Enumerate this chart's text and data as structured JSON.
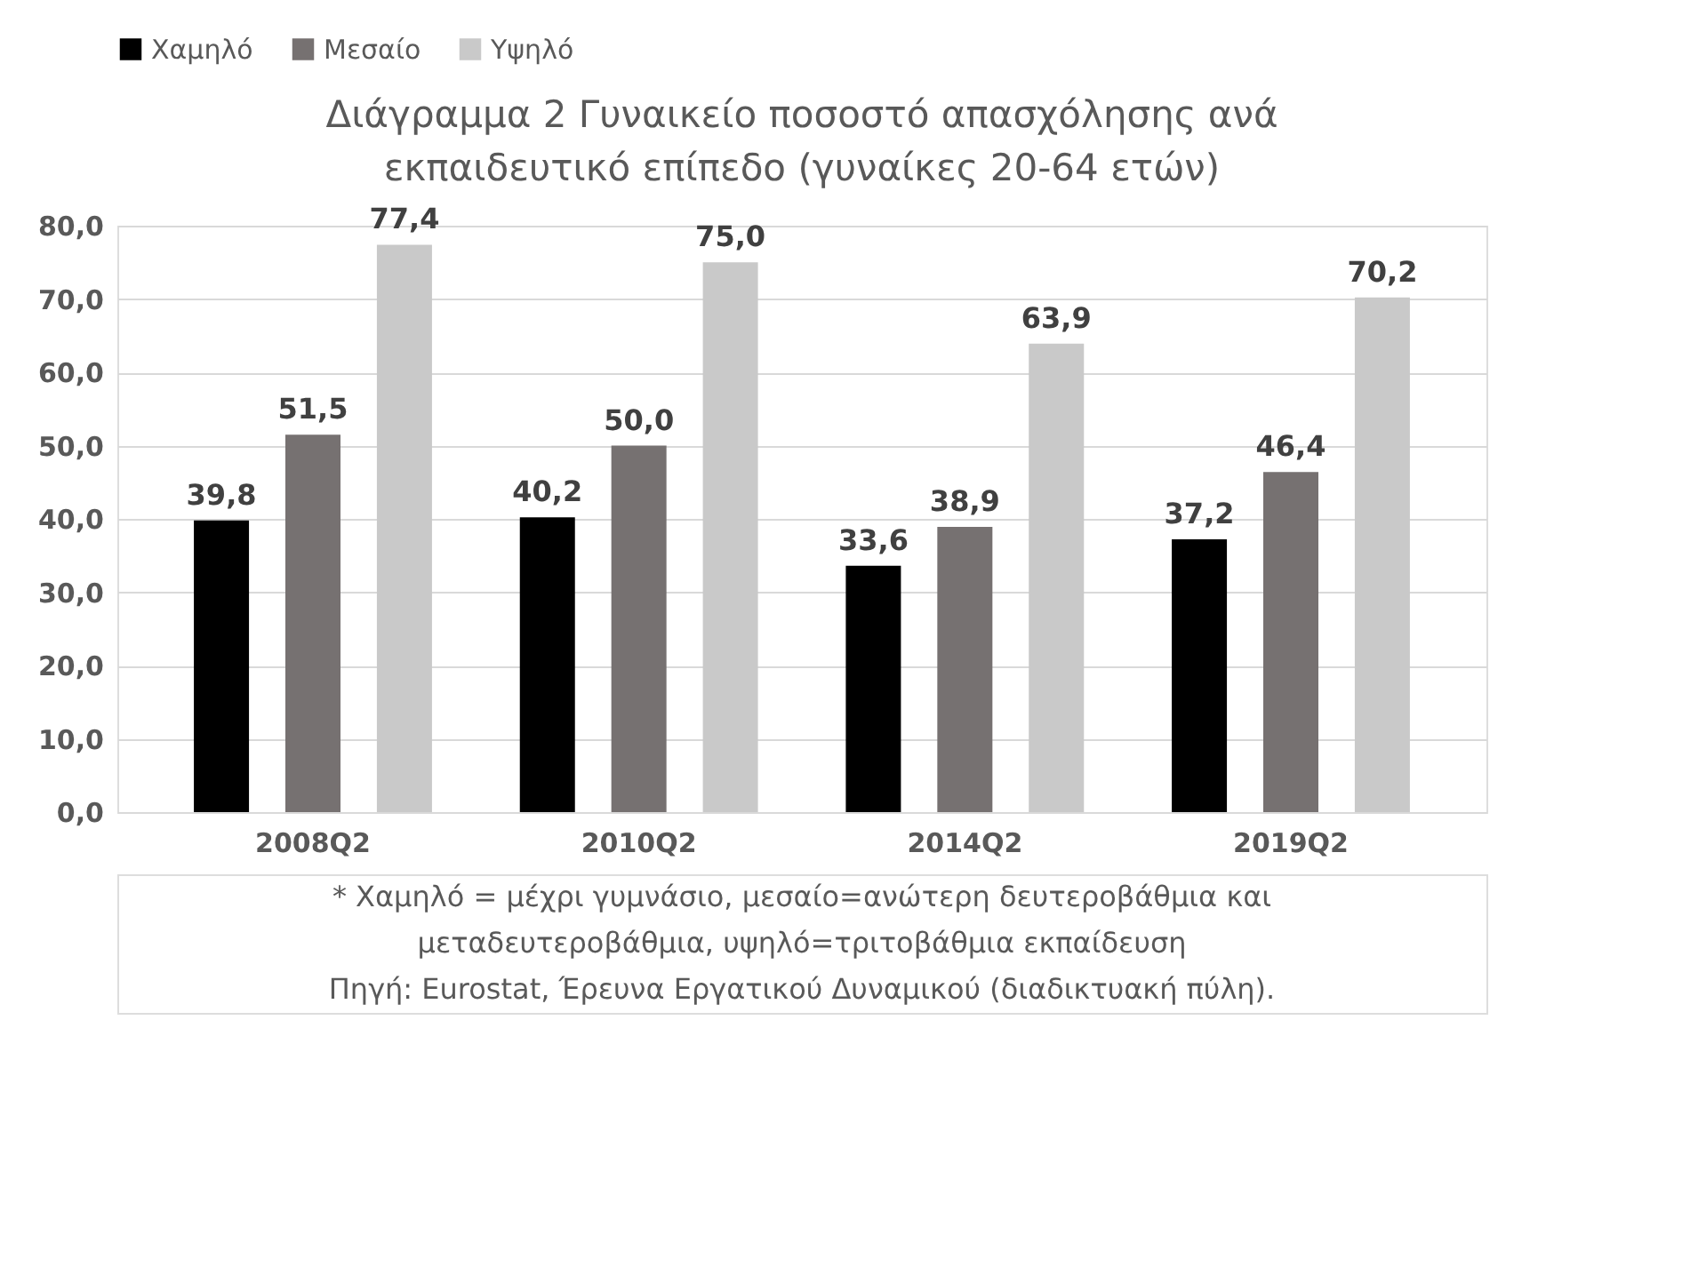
{
  "chart_data": {
    "type": "bar",
    "title": "Διάγραμμα 2 Γυναικείο ποσοστό απασχόλησης ανά εκπαιδευτικό επίπεδο (γυναίκες 20-64 ετών)",
    "categories": [
      "2008Q2",
      "2010Q2",
      "2014Q2",
      "2019Q2"
    ],
    "series": [
      {
        "name": "Χαμηλό",
        "color": "#000000",
        "values": [
          39.8,
          40.2,
          33.6,
          37.2
        ],
        "value_labels": [
          "39,8",
          "40,2",
          "33,6",
          "37,2"
        ]
      },
      {
        "name": "Μεσαίο",
        "color": "#767171",
        "values": [
          51.5,
          50.0,
          38.9,
          46.4
        ],
        "value_labels": [
          "51,5",
          "50,0",
          "38,9",
          "46,4"
        ]
      },
      {
        "name": "Υψηλό",
        "color": "#c9c9c9",
        "values": [
          77.4,
          75.0,
          63.9,
          70.2
        ],
        "value_labels": [
          "77,4",
          "75,0",
          "63,9",
          "70,2"
        ]
      }
    ],
    "ylim": [
      0,
      80
    ],
    "yticks": [
      {
        "value": 0,
        "label": "0,0"
      },
      {
        "value": 10,
        "label": "10,0"
      },
      {
        "value": 20,
        "label": "20,0"
      },
      {
        "value": 30,
        "label": "30,0"
      },
      {
        "value": 40,
        "label": "40,0"
      },
      {
        "value": 50,
        "label": "50,0"
      },
      {
        "value": 60,
        "label": "60,0"
      },
      {
        "value": 70,
        "label": "70,0"
      },
      {
        "value": 80,
        "label": "80,0"
      }
    ],
    "grid": "y",
    "legend": "top",
    "annotations": [
      "* Χαμηλό  = μέχρι γυμνάσιο, μεσαίο=ανώτερη δευτεροβάθμια και",
      "μεταδευτεροβάθμια, υψηλό=τριτοβάθμια εκπαίδευση",
      "Πηγή: Eurostat, Έρευνα Εργατικού Δυναμικού (διαδικτυακή πύλη)."
    ]
  }
}
